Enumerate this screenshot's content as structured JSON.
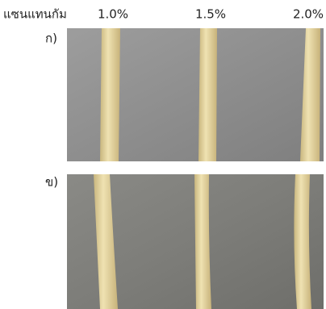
{
  "header": {
    "label": "แซนแทนกัม",
    "concentrations": [
      "1.0%",
      "1.5%",
      "2.0%"
    ]
  },
  "panels": [
    {
      "label": "ก)"
    },
    {
      "label": "ข)"
    }
  ]
}
